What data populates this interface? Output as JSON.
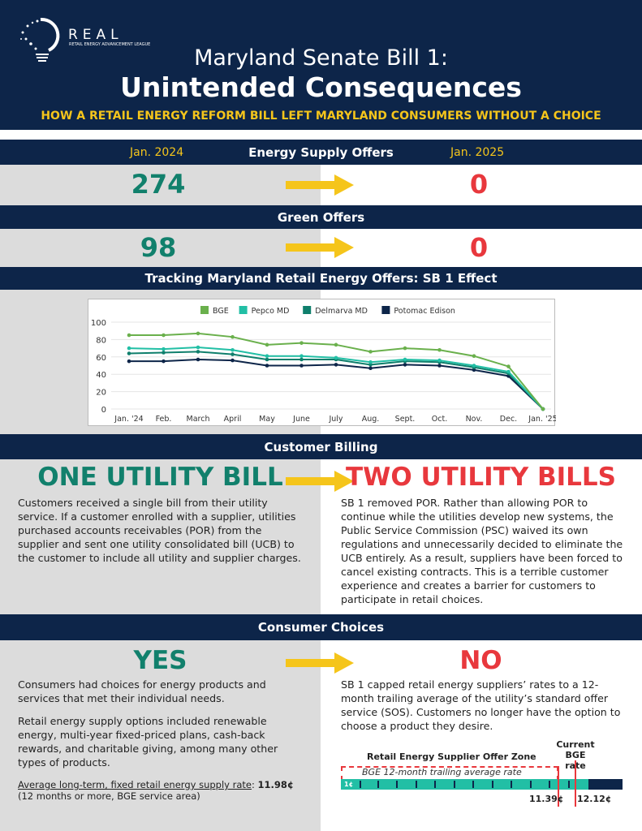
{
  "header": {
    "logo_text": "REAL",
    "logo_subtitle": "Retail Energy Advancement League",
    "title_line1": "Maryland Senate Bill 1:",
    "title_line2": "Unintended Consequences",
    "subtitle": "HOW A RETAIL ENERGY REFORM BILL LEFT MARYLAND CONSUMERS WITHOUT A CHOICE"
  },
  "supply": {
    "left_label": "Jan. 2024",
    "title": "Energy Supply Offers",
    "right_label": "Jan. 2025",
    "before": "274",
    "after": "0"
  },
  "green": {
    "title": "Green Offers",
    "before": "98",
    "after": "0"
  },
  "tracking": {
    "title": "Tracking Maryland Retail Energy Offers: SB 1 Effect"
  },
  "chart_data": {
    "type": "line",
    "title": "",
    "xlabel": "",
    "ylabel": "",
    "ylim": [
      0,
      100
    ],
    "yticks": [
      "0",
      "20",
      "40",
      "60",
      "80",
      "100"
    ],
    "grid": true,
    "legend": "top",
    "categories": [
      "Jan. '24",
      "Feb.",
      "March",
      "April",
      "May",
      "June",
      "July",
      "Aug.",
      "Sept.",
      "Oct.",
      "Nov.",
      "Dec.",
      "Jan. '25"
    ],
    "series": [
      {
        "name": "BGE",
        "color": "#6ab04c",
        "values": [
          85,
          85,
          87,
          83,
          74,
          76,
          74,
          66,
          70,
          68,
          61,
          49,
          0
        ]
      },
      {
        "name": "Pepco MD",
        "color": "#22bfa5",
        "values": [
          70,
          69,
          71,
          68,
          61,
          61,
          59,
          54,
          57,
          56,
          50,
          43,
          0
        ]
      },
      {
        "name": "Delmarva MD",
        "color": "#0f7f6c",
        "values": [
          64,
          65,
          66,
          63,
          57,
          57,
          57,
          51,
          55,
          54,
          48,
          41,
          0
        ]
      },
      {
        "name": "Potomac Edison",
        "color": "#0d2549",
        "values": [
          55,
          55,
          57,
          56,
          50,
          50,
          51,
          47,
          51,
          50,
          45,
          38,
          0
        ]
      }
    ]
  },
  "billing": {
    "title": "Customer Billing",
    "left_head": "ONE UTILITY BILL",
    "right_head": "TWO UTILITY BILLS",
    "left_text": "Customers received a single bill from their utility service. If a customer enrolled with a supplier, utilities purchased accounts receivables (POR) from the supplier and sent one utility consolidated bill (UCB) to the customer to include all utility and supplier charges.",
    "right_text": "SB 1 removed POR. Rather than allowing POR to continue while the utilities develop new systems, the Public Service Commission (PSC) waived its own regulations and unnecessarily decided to eliminate the UCB entirely. As a result, suppliers have been forced to cancel existing contracts. This is a terrible customer experience and creates a barrier for customers to participate in retail choices."
  },
  "choices": {
    "title": "Consumer Choices",
    "left_head": "YES",
    "right_head": "NO",
    "left_p1": "Consumers had choices for energy products and services that met their individual needs.",
    "left_p2": "Retail energy supply options included renewable energy, multi-year fixed-priced plans, cash-back rewards, and charitable giving, among many other types of products.",
    "rate_label": "Average long-term, fixed retail energy supply rate",
    "rate_value": "11.98¢",
    "rate_note": "(12 months or more, BGE service area)",
    "right_text": "SB 1 capped retail energy suppliers’ rates to a 12-month trailing average of the utility’s standard offer service (SOS). Customers no longer have the option to choose a product they desire.",
    "zone_title": "Retail Energy Supplier Offer Zone",
    "current_label": "Current BGE rate",
    "trailing_label": "BGE 12-month trailing average rate",
    "start_label": "1¢",
    "avg_value": "11.39¢",
    "current_value": "12.12¢"
  }
}
